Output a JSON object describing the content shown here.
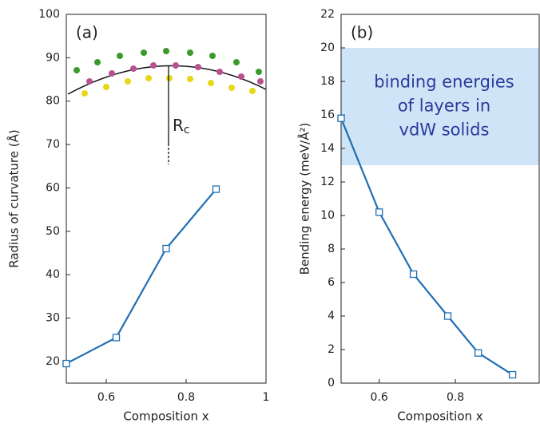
{
  "chart_data": [
    {
      "type": "line",
      "panel_label": "(a)",
      "xlabel": "Composition x",
      "ylabel": "Radius of curvature (Å)",
      "x": [
        0.5,
        0.625,
        0.75,
        0.875
      ],
      "series": [
        {
          "color": "#1f6fb4",
          "values": [
            19.5,
            25.5,
            46,
            59.7
          ]
        }
      ],
      "xlim": [
        0.5,
        1
      ],
      "xticks": [
        0.6,
        0.8,
        1
      ],
      "ylim": [
        15,
        100
      ],
      "yticks": [
        20,
        30,
        40,
        50,
        60,
        70,
        80,
        90,
        100
      ],
      "annotation": {
        "text": "R",
        "subscript": "c"
      }
    },
    {
      "type": "line",
      "panel_label": "(b)",
      "xlabel": "Composition x",
      "ylabel": "Bending energy (meV/Å²)",
      "x": [
        0.5,
        0.6,
        0.69,
        0.78,
        0.86,
        0.95
      ],
      "series": [
        {
          "color": "#1f6fb4",
          "values": [
            15.8,
            10.2,
            6.5,
            4.0,
            1.8,
            0.5
          ]
        }
      ],
      "xlim": [
        0.5,
        1.02
      ],
      "xticks": [
        0.6,
        0.8
      ],
      "ylim": [
        0,
        22
      ],
      "yticks": [
        0,
        2,
        4,
        6,
        8,
        10,
        12,
        14,
        16,
        18,
        20,
        22
      ],
      "highlight": {
        "range": [
          13,
          20
        ],
        "color": "#cfe4f6",
        "lines": [
          "binding energies",
          "of layers in",
          "vdW solids"
        ]
      }
    }
  ]
}
